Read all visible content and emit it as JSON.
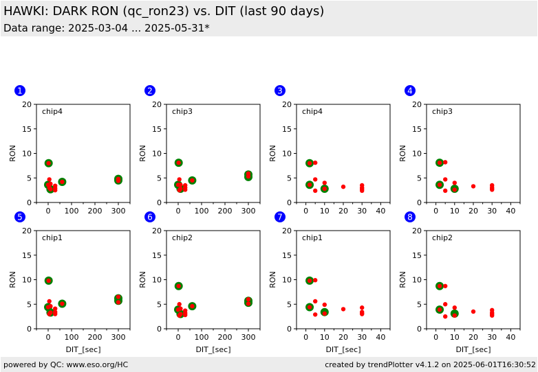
{
  "header": {
    "title": "HAWKI: DARK RON (qc_ron23) vs. DIT (last 90 days)",
    "subtitle": "Data range: 2025-03-04 ... 2025-05-31*"
  },
  "footer": {
    "left": "powered by QC: www.eso.org/HC",
    "right": "created by trendPlotter v4.1.2 on 2025-06-01T16:30:52"
  },
  "colors": {
    "badge": "#0000ff",
    "marker_large": "#008000",
    "marker_small": "#ff0000",
    "header_bg": "#ececec"
  },
  "chart_data": [
    {
      "type": "scatter",
      "panel": "1",
      "label": "chip4",
      "xlabel": "",
      "ylabel": "RON",
      "xlim": [
        -50,
        350
      ],
      "ylim": [
        0,
        20
      ],
      "xticks": [
        0,
        100,
        200,
        300
      ],
      "yticks": [
        0,
        5,
        10,
        15,
        20
      ],
      "series": [
        {
          "name": "large",
          "x": [
            2,
            0,
            10,
            60,
            300,
            300
          ],
          "y": [
            8.0,
            3.6,
            2.7,
            4.2,
            4.5,
            4.8
          ]
        },
        {
          "name": "small",
          "x": [
            2,
            5,
            5,
            10,
            10,
            30,
            30,
            30,
            0,
            60,
            300,
            300
          ],
          "y": [
            8.0,
            4.7,
            3.0,
            3.8,
            2.7,
            3.4,
            2.9,
            2.5,
            3.6,
            4.2,
            4.8,
            4.4
          ]
        }
      ]
    },
    {
      "type": "scatter",
      "panel": "2",
      "label": "chip3",
      "xlabel": "",
      "ylabel": "RON",
      "xlim": [
        -50,
        350
      ],
      "ylim": [
        0,
        20
      ],
      "xticks": [
        0,
        100,
        200,
        300
      ],
      "yticks": [
        0,
        5,
        10,
        15,
        20
      ],
      "series": [
        {
          "name": "large",
          "x": [
            2,
            0,
            10,
            60,
            300,
            300
          ],
          "y": [
            8.1,
            3.6,
            2.8,
            4.5,
            5.2,
            5.7
          ]
        },
        {
          "name": "small",
          "x": [
            2,
            5,
            5,
            10,
            10,
            30,
            30,
            30,
            0,
            60,
            300,
            300
          ],
          "y": [
            8.1,
            4.7,
            2.5,
            3.6,
            2.8,
            3.5,
            3.0,
            2.6,
            3.6,
            4.5,
            5.9,
            5.3
          ]
        }
      ]
    },
    {
      "type": "scatter",
      "panel": "3",
      "label": "chip4",
      "xlabel": "",
      "ylabel": "RON",
      "xlim": [
        -5,
        45
      ],
      "ylim": [
        0,
        20
      ],
      "xticks": [
        0,
        10,
        20,
        30,
        40
      ],
      "yticks": [
        0,
        5,
        10,
        15,
        20
      ],
      "series": [
        {
          "name": "large",
          "x": [
            2,
            2,
            10
          ],
          "y": [
            8.0,
            3.6,
            2.8
          ]
        },
        {
          "name": "small",
          "x": [
            2,
            5,
            2,
            5,
            5,
            10,
            10,
            20,
            30,
            30,
            30,
            30
          ],
          "y": [
            8.0,
            8.1,
            3.6,
            4.7,
            2.4,
            4.0,
            2.8,
            3.2,
            3.5,
            3.0,
            2.7,
            2.4
          ]
        }
      ]
    },
    {
      "type": "scatter",
      "panel": "4",
      "label": "chip3",
      "xlabel": "",
      "ylabel": "RON",
      "xlim": [
        -5,
        45
      ],
      "ylim": [
        0,
        20
      ],
      "xticks": [
        0,
        10,
        20,
        30,
        40
      ],
      "yticks": [
        0,
        5,
        10,
        15,
        20
      ],
      "series": [
        {
          "name": "large",
          "x": [
            2,
            2,
            10
          ],
          "y": [
            8.1,
            3.6,
            2.8
          ]
        },
        {
          "name": "small",
          "x": [
            2,
            5,
            2,
            5,
            5,
            10,
            10,
            20,
            30,
            30,
            30,
            30
          ],
          "y": [
            8.1,
            8.2,
            3.6,
            4.7,
            2.4,
            4.0,
            2.6,
            3.3,
            3.5,
            3.1,
            2.8,
            2.6
          ]
        }
      ]
    },
    {
      "type": "scatter",
      "panel": "5",
      "label": "chip1",
      "xlabel": "DIT_[sec]",
      "ylabel": "RON",
      "xlim": [
        -50,
        350
      ],
      "ylim": [
        0,
        20
      ],
      "xticks": [
        0,
        100,
        200,
        300
      ],
      "yticks": [
        0,
        5,
        10,
        15,
        20
      ],
      "series": [
        {
          "name": "large",
          "x": [
            2,
            0,
            10,
            60,
            300,
            300
          ],
          "y": [
            9.8,
            4.4,
            3.3,
            5.1,
            5.7,
            6.2
          ]
        },
        {
          "name": "small",
          "x": [
            2,
            5,
            5,
            10,
            10,
            30,
            30,
            30,
            0,
            60,
            300,
            300
          ],
          "y": [
            9.8,
            5.6,
            3.0,
            4.6,
            3.3,
            4.1,
            3.4,
            3.0,
            4.4,
            5.1,
            6.5,
            5.4
          ]
        }
      ]
    },
    {
      "type": "scatter",
      "panel": "6",
      "label": "chip2",
      "xlabel": "DIT_[sec]",
      "ylabel": "RON",
      "xlim": [
        -50,
        350
      ],
      "ylim": [
        0,
        20
      ],
      "xticks": [
        0,
        100,
        200,
        300
      ],
      "yticks": [
        0,
        5,
        10,
        15,
        20
      ],
      "series": [
        {
          "name": "large",
          "x": [
            2,
            0,
            10,
            60,
            300,
            300
          ],
          "y": [
            8.7,
            3.9,
            3.0,
            4.6,
            5.3,
            5.7
          ]
        },
        {
          "name": "small",
          "x": [
            2,
            5,
            5,
            10,
            10,
            30,
            30,
            30,
            0,
            60,
            300,
            300
          ],
          "y": [
            8.7,
            5.0,
            2.7,
            4.1,
            3.0,
            3.7,
            3.2,
            2.8,
            3.9,
            4.6,
            6.0,
            5.1
          ]
        }
      ]
    },
    {
      "type": "scatter",
      "panel": "7",
      "label": "chip1",
      "xlabel": "DIT_[sec]",
      "ylabel": "RON",
      "xlim": [
        -5,
        45
      ],
      "ylim": [
        0,
        20
      ],
      "xticks": [
        0,
        10,
        20,
        30,
        40
      ],
      "yticks": [
        0,
        5,
        10,
        15,
        20
      ],
      "series": [
        {
          "name": "large",
          "x": [
            2,
            2,
            10
          ],
          "y": [
            9.8,
            4.4,
            3.4
          ]
        },
        {
          "name": "small",
          "x": [
            2,
            5,
            2,
            5,
            5,
            10,
            10,
            20,
            30,
            30,
            30,
            30
          ],
          "y": [
            9.8,
            9.9,
            4.4,
            5.6,
            2.9,
            4.9,
            3.1,
            4.0,
            4.3,
            3.4,
            3.1,
            3.0
          ]
        }
      ]
    },
    {
      "type": "scatter",
      "panel": "8",
      "label": "chip2",
      "xlabel": "DIT_[sec]",
      "ylabel": "RON",
      "xlim": [
        -5,
        45
      ],
      "ylim": [
        0,
        20
      ],
      "xticks": [
        0,
        10,
        20,
        30,
        40
      ],
      "yticks": [
        0,
        5,
        10,
        15,
        20
      ],
      "series": [
        {
          "name": "large",
          "x": [
            2,
            2,
            10
          ],
          "y": [
            8.7,
            3.9,
            3.1
          ]
        },
        {
          "name": "small",
          "x": [
            2,
            5,
            2,
            5,
            5,
            10,
            10,
            20,
            30,
            30,
            30,
            30
          ],
          "y": [
            8.7,
            8.7,
            3.9,
            5.0,
            2.5,
            4.3,
            2.7,
            3.5,
            3.8,
            3.3,
            3.0,
            2.7
          ]
        }
      ]
    }
  ]
}
